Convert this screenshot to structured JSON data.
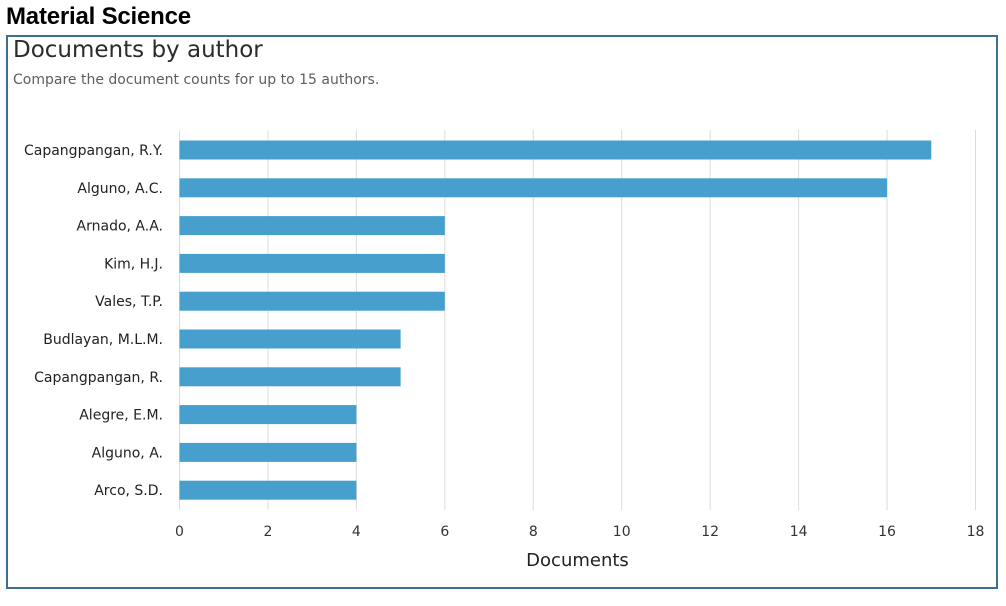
{
  "page": {
    "heading": "Material Science"
  },
  "panel": {
    "title": "Documents by author",
    "subtitle": "Compare the document counts for up to 15 authors."
  },
  "colors": {
    "bar": "#479fcd",
    "grid": "#dcdcdc",
    "panel_border": "#3f6f8f"
  },
  "chart_data": {
    "type": "bar",
    "orientation": "horizontal",
    "categories": [
      "Capangpangan, R.Y.",
      "Alguno, A.C.",
      "Arnado, A.A.",
      "Kim, H.J.",
      "Vales, T.P.",
      "Budlayan, M.L.M.",
      "Capangpangan, R.",
      "Alegre, E.M.",
      "Alguno, A.",
      "Arco, S.D."
    ],
    "values": [
      17,
      16,
      6,
      6,
      6,
      5,
      5,
      4,
      4,
      4
    ],
    "xlabel": "Documents",
    "ylabel": "",
    "xlim": [
      0,
      18
    ],
    "xticks": [
      0,
      2,
      4,
      6,
      8,
      10,
      12,
      14,
      16,
      18
    ],
    "grid": "vertical"
  }
}
